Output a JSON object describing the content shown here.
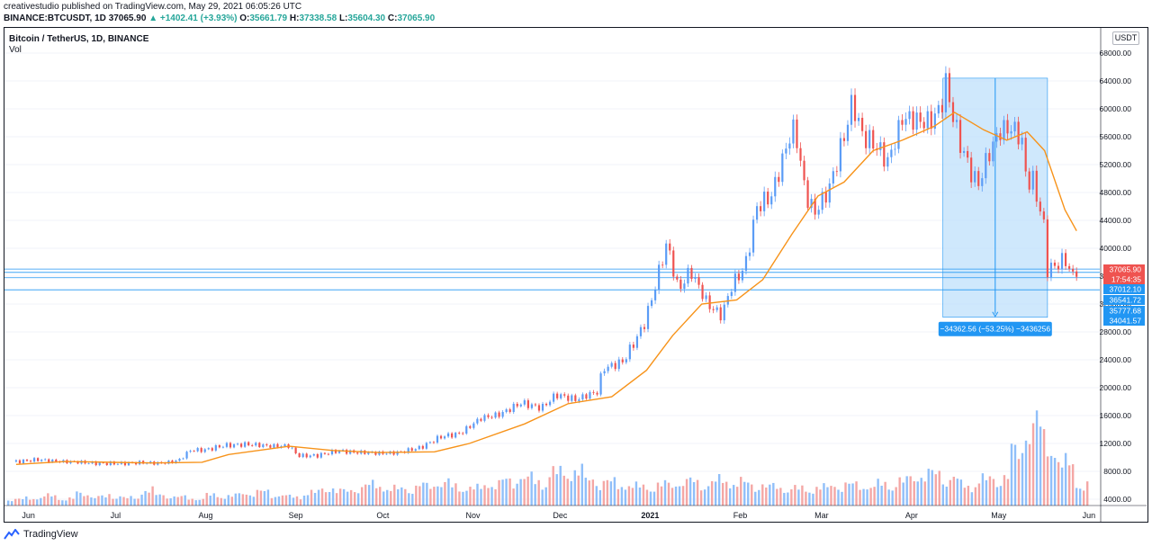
{
  "header": {
    "line1": "creativestudio published on TradingView.com, May 29, 2021 06:05:26 UTC",
    "symbol": "BINANCE:BTCUSDT, 1D",
    "last": "37065.90",
    "change": "▲ +1402.41 (+3.93%)",
    "o_label": "O:",
    "o": "35661.79",
    "h_label": "H:",
    "h": "37338.58",
    "l_label": "L:",
    "l": "35604.30",
    "c_label": "C:",
    "c": "37065.90"
  },
  "chart_title": "Bitcoin / TetherUS, 1D, BINANCE",
  "vol_label": "Vol",
  "currency_button": "USDT",
  "footer_brand": "TradingView",
  "colors": {
    "up": "#5b9cf6",
    "down": "#ef5350",
    "ma": "#f7931a",
    "measure_fill": "#bbdefb",
    "measure_line": "#2196f3",
    "hline": "#2196f3",
    "vol_up": "#90bff9",
    "vol_down": "#f4a7a5"
  },
  "chart_data": {
    "type": "candlestick",
    "ylim": [
      2000,
      70000
    ],
    "y_ticks": [
      4000,
      8000,
      12000,
      16000,
      20000,
      24000,
      28000,
      32000,
      36000,
      40000,
      44000,
      48000,
      52000,
      56000,
      60000,
      64000,
      68000
    ],
    "y_tick_labels": [
      "4000.00",
      "8000.00",
      "12000.00",
      "16000.00",
      "20000.00",
      "24000.00",
      "28000.00",
      "32000.00",
      "36000.00",
      "40000.00",
      "44000.00",
      "48000.00",
      "52000.00",
      "56000.00",
      "60000.00",
      "64000.00",
      "68000.00"
    ],
    "x_ticks": [
      "Jun",
      "Jul",
      "Aug",
      "Sep",
      "Oct",
      "Nov",
      "Dec",
      "2021",
      "Feb",
      "Mar",
      "Apr",
      "May",
      "Jun"
    ],
    "close_series": [
      [
        "2020-05-29",
        9400
      ],
      [
        "2020-06-05",
        9650
      ],
      [
        "2020-06-12",
        9460
      ],
      [
        "2020-06-19",
        9300
      ],
      [
        "2020-06-26",
        9150
      ],
      [
        "2020-07-03",
        9100
      ],
      [
        "2020-07-10",
        9250
      ],
      [
        "2020-07-17",
        9150
      ],
      [
        "2020-07-24",
        9550
      ],
      [
        "2020-07-28",
        11000
      ],
      [
        "2020-08-02",
        11100
      ],
      [
        "2020-08-09",
        11700
      ],
      [
        "2020-08-16",
        11900
      ],
      [
        "2020-08-23",
        11650
      ],
      [
        "2020-08-31",
        11650
      ],
      [
        "2020-09-03",
        10200
      ],
      [
        "2020-09-10",
        10300
      ],
      [
        "2020-09-17",
        10950
      ],
      [
        "2020-09-24",
        10700
      ],
      [
        "2020-10-01",
        10600
      ],
      [
        "2020-10-08",
        10700
      ],
      [
        "2020-10-15",
        11400
      ],
      [
        "2020-10-22",
        12900
      ],
      [
        "2020-10-29",
        13500
      ],
      [
        "2020-11-05",
        15600
      ],
      [
        "2020-11-12",
        16300
      ],
      [
        "2020-11-19",
        17800
      ],
      [
        "2020-11-26",
        17100
      ],
      [
        "2020-12-01",
        19000
      ],
      [
        "2020-12-08",
        18300
      ],
      [
        "2020-12-15",
        19400
      ],
      [
        "2020-12-17",
        22800
      ],
      [
        "2020-12-24",
        23700
      ],
      [
        "2020-12-31",
        29000
      ],
      [
        "2021-01-03",
        33000
      ],
      [
        "2021-01-08",
        40800
      ],
      [
        "2021-01-12",
        34000
      ],
      [
        "2021-01-16",
        36800
      ],
      [
        "2021-01-22",
        32000
      ],
      [
        "2021-01-27",
        30400
      ],
      [
        "2021-01-30",
        34300
      ],
      [
        "2021-02-04",
        37500
      ],
      [
        "2021-02-08",
        46000
      ],
      [
        "2021-02-13",
        47400
      ],
      [
        "2021-02-19",
        55900
      ],
      [
        "2021-02-21",
        57500
      ],
      [
        "2021-02-25",
        47000
      ],
      [
        "2021-02-28",
        45200
      ],
      [
        "2021-03-05",
        48800
      ],
      [
        "2021-03-10",
        56000
      ],
      [
        "2021-03-13",
        61200
      ],
      [
        "2021-03-16",
        56500
      ],
      [
        "2021-03-22",
        54100
      ],
      [
        "2021-03-25",
        52300
      ],
      [
        "2021-03-30",
        58800
      ],
      [
        "2021-04-04",
        58200
      ],
      [
        "2021-04-08",
        58100
      ],
      [
        "2021-04-12",
        60000
      ],
      [
        "2021-04-14",
        63500
      ],
      [
        "2021-04-18",
        56200
      ],
      [
        "2021-04-22",
        51700
      ],
      [
        "2021-04-25",
        49000
      ],
      [
        "2021-04-29",
        53600
      ],
      [
        "2021-05-03",
        57200
      ],
      [
        "2021-05-07",
        57300
      ],
      [
        "2021-05-10",
        55800
      ],
      [
        "2021-05-12",
        49000
      ],
      [
        "2021-05-14",
        49700
      ],
      [
        "2021-05-18",
        42900
      ],
      [
        "2021-05-19",
        37000
      ],
      [
        "2021-05-22",
        37500
      ],
      [
        "2021-05-25",
        38400
      ],
      [
        "2021-05-28",
        35700
      ],
      [
        "2021-05-29",
        37065
      ]
    ],
    "ma_series": [
      [
        "2020-05-29",
        9000
      ],
      [
        "2020-06-15",
        9400
      ],
      [
        "2020-07-15",
        9200
      ],
      [
        "2020-08-01",
        9300
      ],
      [
        "2020-08-10",
        10400
      ],
      [
        "2020-08-31",
        11600
      ],
      [
        "2020-09-15",
        11000
      ],
      [
        "2020-10-01",
        10700
      ],
      [
        "2020-10-20",
        10800
      ],
      [
        "2020-11-01",
        12000
      ],
      [
        "2020-11-20",
        14800
      ],
      [
        "2020-12-05",
        17700
      ],
      [
        "2020-12-20",
        18700
      ],
      [
        "2021-01-01",
        22500
      ],
      [
        "2021-01-10",
        27500
      ],
      [
        "2021-01-20",
        32000
      ],
      [
        "2021-02-01",
        32600
      ],
      [
        "2021-02-10",
        35500
      ],
      [
        "2021-02-20",
        42000
      ],
      [
        "2021-03-01",
        47500
      ],
      [
        "2021-03-10",
        49500
      ],
      [
        "2021-03-20",
        54000
      ],
      [
        "2021-03-30",
        55500
      ],
      [
        "2021-04-10",
        57500
      ],
      [
        "2021-04-17",
        59500
      ],
      [
        "2021-04-27",
        57000
      ],
      [
        "2021-05-05",
        55500
      ],
      [
        "2021-05-12",
        56700
      ],
      [
        "2021-05-18",
        54000
      ],
      [
        "2021-05-25",
        45500
      ],
      [
        "2021-05-29",
        42500
      ]
    ],
    "volume_levels": [
      0.18,
      0.22,
      0.28,
      0.2,
      0.35,
      0.25,
      0.3,
      0.22,
      0.45,
      0.3,
      0.25,
      0.2,
      0.3,
      0.28,
      0.35,
      0.4,
      0.3,
      0.25,
      0.38,
      0.5,
      0.42,
      0.55,
      0.6,
      0.48,
      0.52,
      0.58,
      0.66,
      0.55,
      0.5,
      0.62,
      0.72,
      0.8,
      0.7,
      0.95,
      1.0,
      0.75,
      0.68,
      0.6,
      0.55,
      0.58,
      0.62,
      0.7,
      0.65,
      0.72,
      0.68,
      0.6,
      0.55,
      0.5,
      0.48,
      0.52,
      0.58,
      0.6,
      0.55,
      0.62,
      0.7,
      0.85,
      0.92,
      0.78,
      0.6,
      0.75,
      0.82,
      1.55,
      2.35,
      1.85,
      1.2,
      0.6
    ],
    "measure_box": {
      "label": "−34362.56 (−53.25%) −3436256"
    },
    "price_tags": [
      {
        "price": 37065.9,
        "text": "37065.90",
        "bg": "#ef5350"
      },
      {
        "price": 35960,
        "text": "17:54:35",
        "bg": "#ef5350"
      },
      {
        "price": 37012.1,
        "text": "37012.10",
        "bg": "#2196f3"
      },
      {
        "price": 36541.72,
        "text": "36541.72",
        "bg": "#2196f3"
      },
      {
        "price": 35777.68,
        "text": "35777.68",
        "bg": "#2196f3"
      },
      {
        "price": 34041.57,
        "text": "34041.57",
        "bg": "#2196f3"
      }
    ],
    "hlines": [
      37012.1,
      36541.72,
      35777.68,
      34041.57
    ]
  }
}
